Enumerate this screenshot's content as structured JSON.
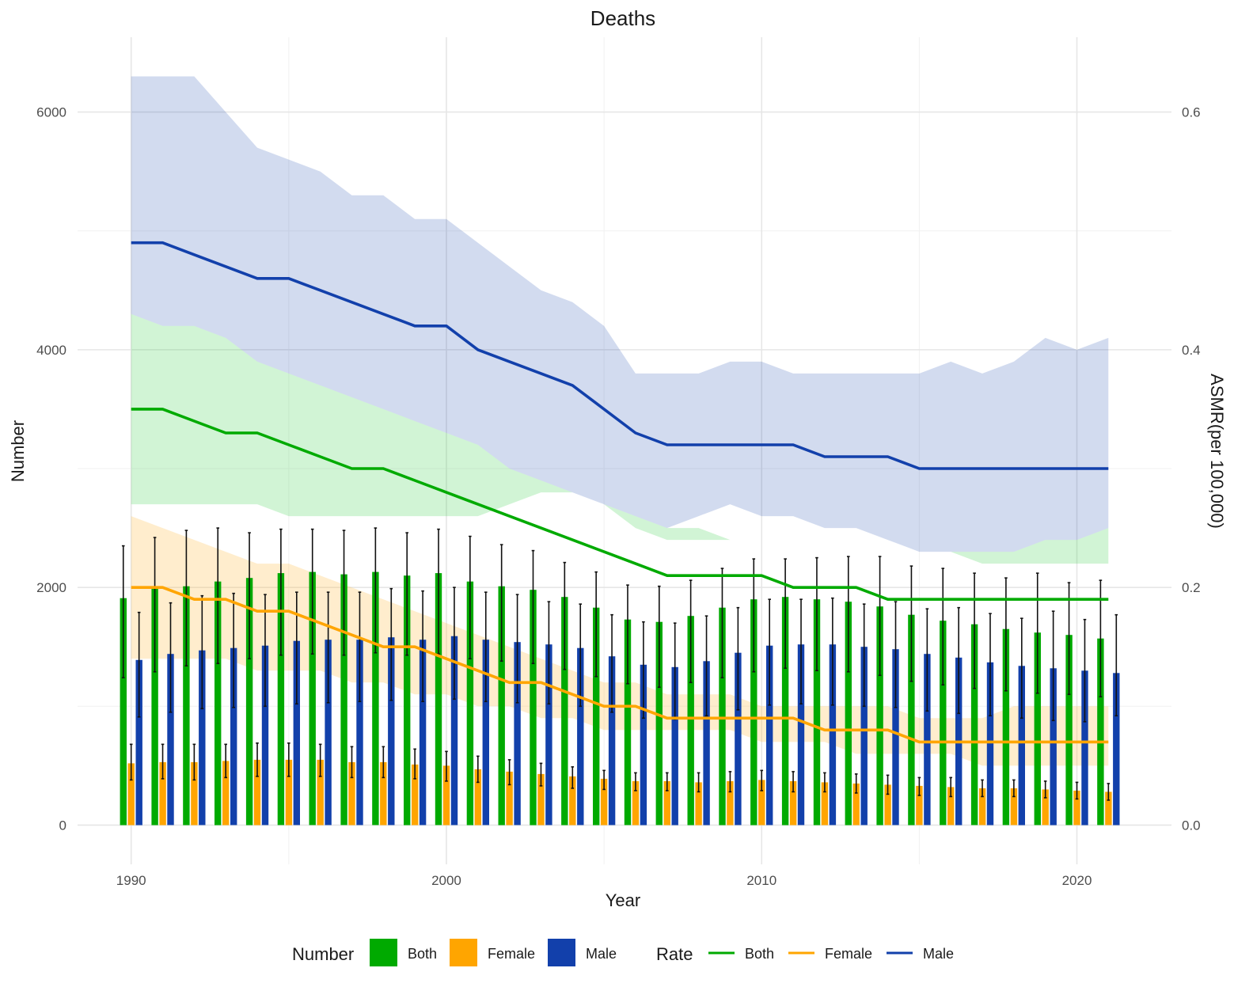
{
  "chart_data": {
    "type": "bar",
    "title": "Deaths",
    "xlabel": "Year",
    "ylabel": "Number",
    "y2label": "ASMR(per 100,000)",
    "xlim": [
      1988.3,
      2023.0
    ],
    "ylim": [
      -330,
      6630
    ],
    "y2lim": [
      -0.033,
      0.663
    ],
    "x_ticks": [
      1990,
      2000,
      2010,
      2020
    ],
    "y_ticks": [
      0,
      2000,
      4000,
      6000
    ],
    "y2_ticks": [
      0.0,
      0.2,
      0.4,
      0.6
    ],
    "y2_tick_labels": [
      "0.0",
      "0.2",
      "0.4",
      "0.6"
    ],
    "grid": true,
    "legend_position": "bottom",
    "years": [
      1990,
      1991,
      1992,
      1993,
      1994,
      1995,
      1996,
      1997,
      1998,
      1999,
      2000,
      2001,
      2002,
      2003,
      2004,
      2005,
      2006,
      2007,
      2008,
      2009,
      2010,
      2011,
      2012,
      2013,
      2014,
      2015,
      2016,
      2017,
      2018,
      2019,
      2020,
      2021
    ],
    "number_series": [
      {
        "name": "Both",
        "color": "#00AA00",
        "values": [
          1910,
          1990,
          2010,
          2050,
          2080,
          2120,
          2130,
          2110,
          2130,
          2100,
          2120,
          2050,
          2010,
          1980,
          1920,
          1830,
          1730,
          1710,
          1760,
          1830,
          1900,
          1920,
          1900,
          1880,
          1840,
          1770,
          1720,
          1690,
          1650,
          1620,
          1600,
          1570
        ],
        "lower": [
          1240,
          1290,
          1340,
          1360,
          1400,
          1430,
          1440,
          1430,
          1450,
          1430,
          1440,
          1400,
          1380,
          1360,
          1310,
          1250,
          1190,
          1160,
          1200,
          1240,
          1290,
          1320,
          1300,
          1290,
          1260,
          1210,
          1180,
          1150,
          1130,
          1110,
          1100,
          1080
        ],
        "upper": [
          2350,
          2420,
          2480,
          2500,
          2460,
          2490,
          2490,
          2480,
          2500,
          2460,
          2490,
          2430,
          2360,
          2310,
          2210,
          2130,
          2020,
          2010,
          2060,
          2160,
          2240,
          2240,
          2250,
          2260,
          2260,
          2180,
          2160,
          2120,
          2080,
          2120,
          2040,
          2060
        ]
      },
      {
        "name": "Female",
        "color": "#FFA500",
        "values": [
          520,
          530,
          530,
          540,
          550,
          550,
          550,
          530,
          530,
          510,
          500,
          470,
          450,
          430,
          410,
          390,
          370,
          370,
          360,
          370,
          380,
          370,
          360,
          350,
          340,
          330,
          320,
          310,
          310,
          300,
          290,
          280
        ],
        "lower": [
          380,
          390,
          380,
          400,
          410,
          410,
          410,
          400,
          400,
          390,
          370,
          360,
          340,
          330,
          310,
          300,
          290,
          290,
          280,
          280,
          290,
          280,
          280,
          270,
          260,
          250,
          240,
          240,
          240,
          230,
          220,
          210
        ],
        "upper": [
          680,
          680,
          680,
          680,
          690,
          690,
          680,
          660,
          660,
          640,
          620,
          580,
          550,
          520,
          490,
          460,
          440,
          440,
          440,
          450,
          460,
          450,
          440,
          430,
          420,
          400,
          400,
          380,
          380,
          370,
          360,
          350
        ]
      },
      {
        "name": "Male",
        "color": "#1240AB",
        "values": [
          1390,
          1440,
          1470,
          1490,
          1510,
          1550,
          1560,
          1560,
          1580,
          1560,
          1590,
          1560,
          1540,
          1520,
          1490,
          1420,
          1350,
          1330,
          1380,
          1450,
          1510,
          1520,
          1520,
          1500,
          1480,
          1440,
          1410,
          1370,
          1340,
          1320,
          1300,
          1280
        ],
        "lower": [
          910,
          950,
          980,
          990,
          1000,
          1020,
          1030,
          1040,
          1050,
          1040,
          1060,
          1040,
          1030,
          1020,
          1000,
          950,
          900,
          890,
          920,
          970,
          1010,
          1020,
          1010,
          1000,
          990,
          960,
          940,
          920,
          900,
          880,
          870,
          920
        ],
        "upper": [
          1790,
          1870,
          1930,
          1950,
          1940,
          1960,
          1960,
          1960,
          1990,
          1970,
          2000,
          1960,
          1940,
          1880,
          1860,
          1770,
          1710,
          1700,
          1760,
          1830,
          1900,
          1900,
          1910,
          1860,
          1880,
          1820,
          1830,
          1780,
          1740,
          1800,
          1730,
          1770
        ]
      }
    ],
    "rate_series": [
      {
        "name": "Both",
        "color": "#00AA00",
        "band_color": "#2ECC40",
        "values": [
          0.35,
          0.35,
          0.34,
          0.33,
          0.33,
          0.32,
          0.31,
          0.3,
          0.3,
          0.29,
          0.28,
          0.27,
          0.26,
          0.25,
          0.24,
          0.23,
          0.22,
          0.21,
          0.21,
          0.21,
          0.21,
          0.2,
          0.2,
          0.2,
          0.19,
          0.19,
          0.19,
          0.19,
          0.19,
          0.19,
          0.19,
          0.19
        ],
        "lower": [
          0.27,
          0.27,
          0.27,
          0.27,
          0.27,
          0.26,
          0.26,
          0.26,
          0.26,
          0.26,
          0.26,
          0.26,
          0.27,
          0.28,
          0.28,
          0.27,
          0.25,
          0.24,
          0.24,
          0.24,
          0.24,
          0.24,
          0.23,
          0.23,
          0.24,
          0.23,
          0.23,
          0.22,
          0.22,
          0.22,
          0.22,
          0.22
        ],
        "upper": [
          0.43,
          0.42,
          0.42,
          0.41,
          0.39,
          0.38,
          0.37,
          0.36,
          0.35,
          0.34,
          0.33,
          0.32,
          0.3,
          0.29,
          0.28,
          0.27,
          0.26,
          0.25,
          0.25,
          0.24,
          0.24,
          0.24,
          0.23,
          0.23,
          0.24,
          0.23,
          0.23,
          0.23,
          0.23,
          0.24,
          0.24,
          0.25
        ],
        "band_lower": [
          0.27,
          0.27,
          0.27,
          0.27,
          0.27,
          0.26,
          0.26,
          0.26,
          0.26,
          0.26,
          0.26,
          0.26,
          0.27,
          0.28,
          0.28,
          0.27,
          0.25,
          0.24,
          0.24,
          0.24,
          0.24,
          0.24,
          0.23,
          0.23,
          0.24,
          0.23,
          0.23,
          0.22,
          0.22,
          0.22,
          0.22,
          0.22
        ],
        "band_upper": [
          0.43,
          0.42,
          0.42,
          0.41,
          0.39,
          0.38,
          0.37,
          0.36,
          0.35,
          0.34,
          0.33,
          0.32,
          0.3,
          0.29,
          0.28,
          0.27,
          0.26,
          0.25,
          0.25,
          0.24,
          0.24,
          0.24,
          0.23,
          0.23,
          0.24,
          0.23,
          0.23,
          0.23,
          0.23,
          0.24,
          0.24,
          0.25
        ],
        "band2_lower": [
          0.27,
          0.27,
          0.27,
          0.27,
          0.27,
          0.26,
          0.26,
          0.25,
          0.25,
          0.25,
          0.25,
          0.26,
          0.27,
          0.28,
          0.28,
          0.27,
          0.25,
          0.24,
          0.24,
          0.24,
          0.24,
          0.24,
          0.23,
          0.23,
          0.24,
          0.23,
          0.23,
          0.22,
          0.22,
          0.22,
          0.22,
          0.22
        ],
        "inner_lower": [
          0.27,
          0.27,
          0.27,
          0.27,
          0.27,
          0.26,
          0.26,
          0.26,
          0.26,
          0.26,
          0.26,
          0.26,
          0.27,
          0.28,
          0.28,
          0.27,
          0.25,
          0.24,
          0.24,
          0.24,
          0.24,
          0.24,
          0.23,
          0.23,
          0.24,
          0.23,
          0.23,
          0.22,
          0.22,
          0.22,
          0.22,
          0.22
        ],
        "ci_lower": [
          0.27,
          0.27,
          0.27,
          0.27,
          0.27,
          0.26,
          0.26,
          0.26,
          0.26,
          0.26,
          0.26,
          0.26,
          0.27,
          0.28,
          0.28,
          0.27,
          0.25,
          0.24,
          0.24,
          0.24,
          0.24,
          0.24,
          0.23,
          0.23,
          0.24,
          0.23,
          0.23,
          0.22,
          0.22,
          0.22,
          0.22,
          0.22
        ],
        "ci_upper": [
          0.43,
          0.42,
          0.42,
          0.41,
          0.39,
          0.38,
          0.37,
          0.36,
          0.35,
          0.34,
          0.33,
          0.32,
          0.3,
          0.29,
          0.28,
          0.27,
          0.26,
          0.25,
          0.25,
          0.24,
          0.24,
          0.24,
          0.23,
          0.23,
          0.24,
          0.23,
          0.23,
          0.23,
          0.23,
          0.24,
          0.24,
          0.25
        ],
        "ci2_lower": [
          0.27,
          0.27,
          0.27,
          0.27,
          0.27,
          0.26,
          0.26,
          0.26,
          0.26,
          0.26,
          0.26,
          0.26,
          0.27,
          0.28,
          0.28,
          0.27,
          0.25,
          0.24,
          0.24,
          0.24,
          0.24,
          0.24,
          0.23,
          0.23,
          0.24,
          0.23,
          0.23,
          0.22,
          0.22,
          0.22,
          0.22,
          0.22
        ],
        "ci2_upper": [
          0.27,
          0.27,
          0.27,
          0.27,
          0.27,
          0.26,
          0.26,
          0.25,
          0.25,
          0.24,
          0.24,
          0.25,
          0.25,
          0.25,
          0.25,
          0.23,
          0.22,
          0.21,
          0.21,
          0.21,
          0.2,
          0.2,
          0.19,
          0.19,
          0.19,
          0.18,
          0.18,
          0.18,
          0.18,
          0.17,
          0.17,
          0.17
        ]
      },
      {
        "name": "Female",
        "color": "#FFA500",
        "values": [
          0.2,
          0.2,
          0.19,
          0.19,
          0.18,
          0.18,
          0.17,
          0.16,
          0.15,
          0.15,
          0.14,
          0.13,
          0.12,
          0.12,
          0.11,
          0.1,
          0.1,
          0.09,
          0.09,
          0.09,
          0.09,
          0.09,
          0.08,
          0.08,
          0.08,
          0.07,
          0.07,
          0.07,
          0.07,
          0.07,
          0.07,
          0.07
        ],
        "lower": [
          0.14,
          0.14,
          0.14,
          0.14,
          0.13,
          0.13,
          0.13,
          0.12,
          0.12,
          0.11,
          0.11,
          0.1,
          0.1,
          0.09,
          0.09,
          0.08,
          0.08,
          0.08,
          0.08,
          0.08,
          0.07,
          0.07,
          0.07,
          0.06,
          0.06,
          0.06,
          0.06,
          0.05,
          0.05,
          0.05,
          0.05,
          0.05
        ],
        "upper": [
          0.26,
          0.25,
          0.24,
          0.23,
          0.22,
          0.22,
          0.21,
          0.2,
          0.19,
          0.18,
          0.17,
          0.16,
          0.15,
          0.14,
          0.13,
          0.12,
          0.12,
          0.11,
          0.11,
          0.11,
          0.1,
          0.1,
          0.1,
          0.1,
          0.1,
          0.09,
          0.09,
          0.09,
          0.1,
          0.1,
          0.1,
          0.1
        ]
      },
      {
        "name": "Male",
        "color": "#1240AB",
        "values": [
          0.49,
          0.49,
          0.48,
          0.47,
          0.46,
          0.46,
          0.45,
          0.44,
          0.43,
          0.42,
          0.42,
          0.4,
          0.39,
          0.38,
          0.37,
          0.35,
          0.33,
          0.32,
          0.32,
          0.32,
          0.32,
          0.32,
          0.31,
          0.31,
          0.31,
          0.3,
          0.3,
          0.3,
          0.3,
          0.3,
          0.3,
          0.3
        ],
        "lower": [
          0.43,
          0.42,
          0.42,
          0.41,
          0.39,
          0.38,
          0.37,
          0.36,
          0.35,
          0.34,
          0.33,
          0.32,
          0.3,
          0.29,
          0.28,
          0.27,
          0.26,
          0.25,
          0.26,
          0.27,
          0.26,
          0.26,
          0.25,
          0.25,
          0.24,
          0.23,
          0.23,
          0.23,
          0.23,
          0.24,
          0.24,
          0.25
        ],
        "upper": [
          0.63,
          0.63,
          0.63,
          0.6,
          0.57,
          0.56,
          0.55,
          0.53,
          0.53,
          0.51,
          0.51,
          0.49,
          0.47,
          0.45,
          0.44,
          0.42,
          0.38,
          0.38,
          0.38,
          0.39,
          0.39,
          0.38,
          0.38,
          0.38,
          0.38,
          0.38,
          0.39,
          0.38,
          0.39,
          0.41,
          0.4,
          0.41
        ]
      }
    ]
  },
  "legend": {
    "number_title": "Number",
    "rate_title": "Rate",
    "number_items": [
      {
        "label": "Both",
        "color": "#00AA00"
      },
      {
        "label": "Female",
        "color": "#FFA500"
      },
      {
        "label": "Male",
        "color": "#1240AB"
      }
    ],
    "rate_items": [
      {
        "label": "Both",
        "color": "#00AA00"
      },
      {
        "label": "Female",
        "color": "#FFA500"
      },
      {
        "label": "Male",
        "color": "#1240AB"
      }
    ]
  }
}
